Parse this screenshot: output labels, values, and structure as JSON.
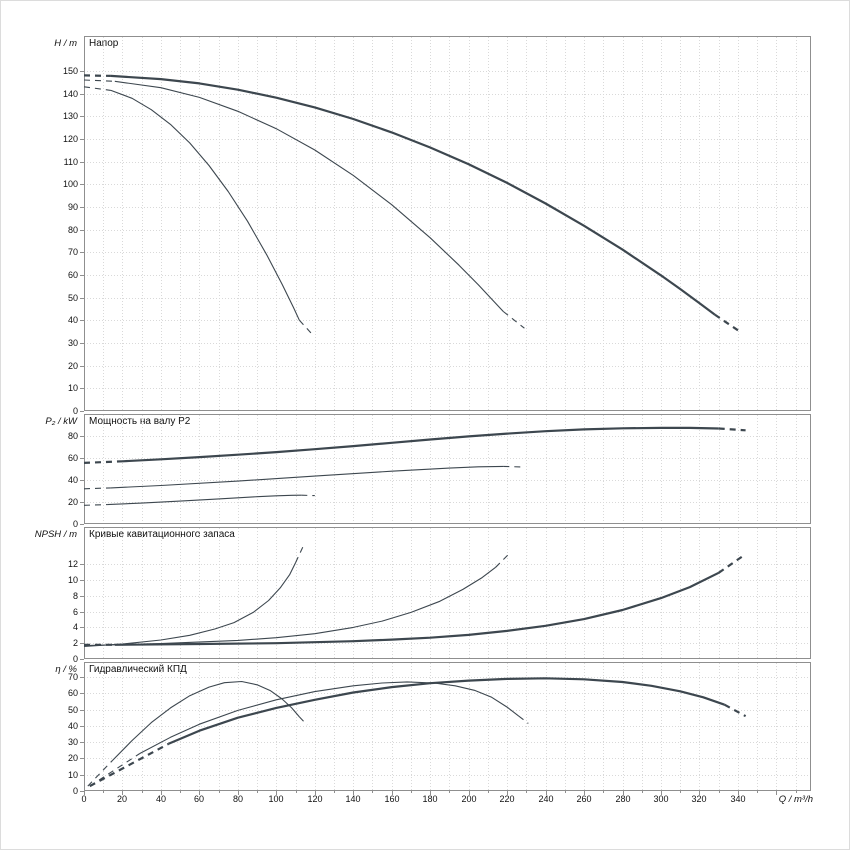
{
  "colors": {
    "curve": "#3d474f",
    "grid": "#d9d9d9",
    "frame": "#8f8f8f",
    "text": "#1a1a1a"
  },
  "x_axis": {
    "label": "Q / m³/h",
    "domain": [
      0,
      378
    ],
    "major_step": 20,
    "minor_step": 10,
    "ticks": [
      0,
      20,
      40,
      60,
      80,
      100,
      120,
      140,
      160,
      180,
      200,
      220,
      240,
      260,
      280,
      300,
      320,
      340
    ]
  },
  "chart_data": [
    {
      "id": "head",
      "type": "line",
      "title": "Напор",
      "ylabel": "H / m",
      "y_ticks": [
        0,
        10,
        20,
        30,
        40,
        50,
        60,
        70,
        80,
        90,
        100,
        110,
        120,
        130,
        140,
        150
      ],
      "y_max": 165.4,
      "series": [
        {
          "name": "nominal-lead",
          "weight": "bold",
          "dashed": true,
          "points": [
            [
              0,
              148.0
            ],
            [
              14,
              147.8
            ]
          ]
        },
        {
          "name": "nominal-main",
          "weight": "bold",
          "dashed": false,
          "points": [
            [
              14,
              147.8
            ],
            [
              40,
              146.4
            ],
            [
              60,
              144.5
            ],
            [
              80,
              141.7
            ],
            [
              100,
              138.2
            ],
            [
              120,
              133.9
            ],
            [
              140,
              128.8
            ],
            [
              160,
              122.9
            ],
            [
              180,
              116.2
            ],
            [
              200,
              108.8
            ],
            [
              220,
              100.6
            ],
            [
              240,
              91.5
            ],
            [
              260,
              81.7
            ],
            [
              280,
              71.2
            ],
            [
              300,
              59.8
            ],
            [
              310,
              53.8
            ],
            [
              320,
              47.6
            ],
            [
              328,
              42.5
            ]
          ]
        },
        {
          "name": "nominal-tail",
          "weight": "bold",
          "dashed": true,
          "points": [
            [
              328,
              42.5
            ],
            [
              341,
              35.0
            ]
          ]
        },
        {
          "name": "trim-mid-lead",
          "weight": "thin",
          "dashed": true,
          "points": [
            [
              0,
              146.0
            ],
            [
              16,
              145.4
            ]
          ]
        },
        {
          "name": "trim-mid-main",
          "weight": "thin",
          "dashed": false,
          "points": [
            [
              16,
              145.4
            ],
            [
              40,
              142.6
            ],
            [
              60,
              138.3
            ],
            [
              80,
              132.2
            ],
            [
              100,
              124.5
            ],
            [
              120,
              115.1
            ],
            [
              140,
              103.9
            ],
            [
              160,
              91.0
            ],
            [
              180,
              76.4
            ],
            [
              195,
              64.3
            ],
            [
              205,
              55.7
            ],
            [
              213,
              48.4
            ],
            [
              218,
              43.9
            ]
          ]
        },
        {
          "name": "trim-mid-tail",
          "weight": "thin",
          "dashed": true,
          "points": [
            [
              218,
              43.9
            ],
            [
              229,
              36.5
            ]
          ]
        },
        {
          "name": "trim-min-lead",
          "weight": "thin",
          "dashed": true,
          "points": [
            [
              0,
              143.0
            ],
            [
              14,
              141.4
            ]
          ]
        },
        {
          "name": "trim-min-main",
          "weight": "thin",
          "dashed": false,
          "points": [
            [
              14,
              141.4
            ],
            [
              25,
              137.9
            ],
            [
              35,
              132.9
            ],
            [
              45,
              126.4
            ],
            [
              55,
              118.2
            ],
            [
              65,
              108.3
            ],
            [
              75,
              96.8
            ],
            [
              85,
              83.7
            ],
            [
              95,
              68.9
            ],
            [
              103,
              55.9
            ],
            [
              109,
              45.5
            ],
            [
              112,
              40.0
            ]
          ]
        },
        {
          "name": "trim-min-tail",
          "weight": "thin",
          "dashed": true,
          "points": [
            [
              112,
              40.0
            ],
            [
              119,
              33.5
            ]
          ]
        }
      ]
    },
    {
      "id": "power",
      "type": "line",
      "title": "Мощность на валу P2",
      "ylabel": "P₂ / kW",
      "y_ticks": [
        0,
        20,
        40,
        60,
        80
      ],
      "y_max": 100,
      "series": [
        {
          "name": "nominal-lead",
          "weight": "bold",
          "dashed": true,
          "points": [
            [
              0,
              55.5
            ],
            [
              20,
              57.0
            ]
          ]
        },
        {
          "name": "nominal-main",
          "weight": "bold",
          "dashed": false,
          "points": [
            [
              20,
              57.0
            ],
            [
              40,
              58.8
            ],
            [
              60,
              60.8
            ],
            [
              80,
              63.0
            ],
            [
              100,
              65.4
            ],
            [
              120,
              68.0
            ],
            [
              140,
              70.8
            ],
            [
              160,
              73.8
            ],
            [
              180,
              76.8
            ],
            [
              200,
              79.6
            ],
            [
              220,
              82.2
            ],
            [
              240,
              84.4
            ],
            [
              260,
              86.0
            ],
            [
              280,
              87.0
            ],
            [
              300,
              87.4
            ],
            [
              315,
              87.4
            ],
            [
              330,
              86.8
            ]
          ]
        },
        {
          "name": "nominal-tail",
          "weight": "bold",
          "dashed": true,
          "points": [
            [
              330,
              86.8
            ],
            [
              344,
              85.2
            ]
          ]
        },
        {
          "name": "trim-mid-lead",
          "weight": "thin",
          "dashed": true,
          "points": [
            [
              0,
              32.0
            ],
            [
              14,
              32.8
            ]
          ]
        },
        {
          "name": "trim-mid-main",
          "weight": "thin",
          "dashed": false,
          "points": [
            [
              14,
              32.8
            ],
            [
              40,
              35.0
            ],
            [
              80,
              39.0
            ],
            [
              120,
              43.5
            ],
            [
              160,
              48.0
            ],
            [
              190,
              50.8
            ],
            [
              205,
              52.0
            ],
            [
              218,
              52.4
            ]
          ]
        },
        {
          "name": "trim-mid-tail",
          "weight": "thin",
          "dashed": true,
          "points": [
            [
              218,
              52.4
            ],
            [
              228,
              51.8
            ]
          ]
        },
        {
          "name": "trim-min-lead",
          "weight": "thin",
          "dashed": true,
          "points": [
            [
              0,
              17.0
            ],
            [
              12,
              17.6
            ]
          ]
        },
        {
          "name": "trim-min-main",
          "weight": "thin",
          "dashed": false,
          "points": [
            [
              12,
              17.6
            ],
            [
              30,
              19.0
            ],
            [
              50,
              20.8
            ],
            [
              70,
              22.8
            ],
            [
              90,
              24.8
            ],
            [
              100,
              25.6
            ],
            [
              108,
              26.1
            ],
            [
              113,
              26.2
            ]
          ]
        },
        {
          "name": "trim-min-tail",
          "weight": "thin",
          "dashed": true,
          "points": [
            [
              113,
              26.2
            ],
            [
              120,
              25.8
            ]
          ]
        }
      ]
    },
    {
      "id": "npsh",
      "type": "line",
      "title": "Кривые кавитационного запаса",
      "ylabel": "NPSH / m",
      "y_ticks": [
        0,
        2,
        4,
        6,
        8,
        10,
        12
      ],
      "y_max": 16.7,
      "series": [
        {
          "name": "nominal-lead",
          "weight": "bold",
          "dashed": true,
          "points": [
            [
              0,
              1.8
            ],
            [
              16,
              1.8
            ]
          ]
        },
        {
          "name": "nominal-main",
          "weight": "bold",
          "dashed": false,
          "points": [
            [
              16,
              1.8
            ],
            [
              60,
              1.9
            ],
            [
              100,
              2.0
            ],
            [
              140,
              2.25
            ],
            [
              160,
              2.45
            ],
            [
              180,
              2.7
            ],
            [
              200,
              3.05
            ],
            [
              220,
              3.55
            ],
            [
              240,
              4.2
            ],
            [
              260,
              5.05
            ],
            [
              280,
              6.2
            ],
            [
              300,
              7.7
            ],
            [
              315,
              9.1
            ],
            [
              330,
              10.9
            ]
          ]
        },
        {
          "name": "nominal-tail",
          "weight": "bold",
          "dashed": true,
          "points": [
            [
              330,
              10.9
            ],
            [
              343,
              13.1
            ]
          ]
        },
        {
          "name": "trim-mid-main",
          "weight": "thin",
          "dashed": false,
          "points": [
            [
              0,
              1.7
            ],
            [
              40,
              1.95
            ],
            [
              80,
              2.35
            ],
            [
              100,
              2.7
            ],
            [
              120,
              3.2
            ],
            [
              140,
              4.0
            ],
            [
              155,
              4.8
            ],
            [
              170,
              5.9
            ],
            [
              185,
              7.3
            ],
            [
              197,
              8.8
            ],
            [
              207,
              10.3
            ],
            [
              214,
              11.6
            ]
          ]
        },
        {
          "name": "trim-mid-tail",
          "weight": "thin",
          "dashed": true,
          "points": [
            [
              214,
              11.6
            ],
            [
              221,
              13.3
            ]
          ]
        },
        {
          "name": "trim-min-main",
          "weight": "thin",
          "dashed": false,
          "points": [
            [
              0,
              1.6
            ],
            [
              20,
              1.9
            ],
            [
              40,
              2.4
            ],
            [
              55,
              3.0
            ],
            [
              68,
              3.8
            ],
            [
              78,
              4.6
            ],
            [
              88,
              5.9
            ],
            [
              96,
              7.4
            ],
            [
              102,
              9.0
            ],
            [
              107,
              10.7
            ],
            [
              110,
              12.2
            ]
          ]
        },
        {
          "name": "trim-min-tail",
          "weight": "thin",
          "dashed": true,
          "points": [
            [
              110,
              12.2
            ],
            [
              114,
              14.3
            ]
          ]
        }
      ]
    },
    {
      "id": "efficiency",
      "type": "line",
      "title": "Гидравлический КПД",
      "ylabel": "η / %",
      "y_ticks": [
        0,
        10,
        20,
        30,
        40,
        50,
        60,
        70
      ],
      "y_max": 79.2,
      "series": [
        {
          "name": "nominal-lead",
          "weight": "bold",
          "dashed": true,
          "points": [
            [
              3,
              3
            ],
            [
              44,
              29
            ]
          ]
        },
        {
          "name": "nominal-main",
          "weight": "bold",
          "dashed": false,
          "points": [
            [
              44,
              29
            ],
            [
              60,
              37
            ],
            [
              80,
              45
            ],
            [
              100,
              51
            ],
            [
              120,
              56
            ],
            [
              140,
              60.5
            ],
            [
              160,
              63.8
            ],
            [
              180,
              66.2
            ],
            [
              200,
              67.8
            ],
            [
              220,
              68.8
            ],
            [
              240,
              69.2
            ],
            [
              260,
              68.6
            ],
            [
              280,
              66.9
            ],
            [
              295,
              64.6
            ],
            [
              310,
              61.2
            ],
            [
              322,
              57.5
            ],
            [
              333,
              53
            ]
          ]
        },
        {
          "name": "nominal-tail",
          "weight": "bold",
          "dashed": true,
          "points": [
            [
              333,
              53
            ],
            [
              344,
              46
            ]
          ]
        },
        {
          "name": "trim-mid-lead",
          "weight": "thin",
          "dashed": true,
          "points": [
            [
              3,
              3
            ],
            [
              29,
              23
            ]
          ]
        },
        {
          "name": "trim-mid-main",
          "weight": "thin",
          "dashed": false,
          "points": [
            [
              29,
              23
            ],
            [
              45,
              33
            ],
            [
              60,
              41
            ],
            [
              80,
              49.5
            ],
            [
              100,
              56
            ],
            [
              120,
              61
            ],
            [
              140,
              64.6
            ],
            [
              155,
              66.3
            ],
            [
              168,
              67
            ],
            [
              182,
              66.3
            ],
            [
              193,
              64.6
            ],
            [
              203,
              61.8
            ],
            [
              212,
              57.5
            ],
            [
              220,
              51.5
            ],
            [
              226,
              46
            ]
          ]
        },
        {
          "name": "trim-mid-tail",
          "weight": "thin",
          "dashed": true,
          "points": [
            [
              226,
              46
            ],
            [
              231,
              41.5
            ]
          ]
        },
        {
          "name": "trim-min-lead",
          "weight": "thin",
          "dashed": true,
          "points": [
            [
              2,
              3
            ],
            [
              15,
              19
            ]
          ]
        },
        {
          "name": "trim-min-main",
          "weight": "thin",
          "dashed": false,
          "points": [
            [
              15,
              19
            ],
            [
              25,
              31
            ],
            [
              35,
              42
            ],
            [
              45,
              51
            ],
            [
              55,
              58.5
            ],
            [
              65,
              63.8
            ],
            [
              73,
              66.5
            ],
            [
              82,
              67.2
            ],
            [
              90,
              65.2
            ],
            [
              97,
              61.5
            ],
            [
              103,
              56.5
            ],
            [
              108,
              51
            ],
            [
              112,
              45.5
            ]
          ]
        },
        {
          "name": "trim-min-tail",
          "weight": "thin",
          "dashed": true,
          "points": [
            [
              112,
              45.5
            ],
            [
              116,
              40.5
            ]
          ]
        }
      ]
    }
  ]
}
